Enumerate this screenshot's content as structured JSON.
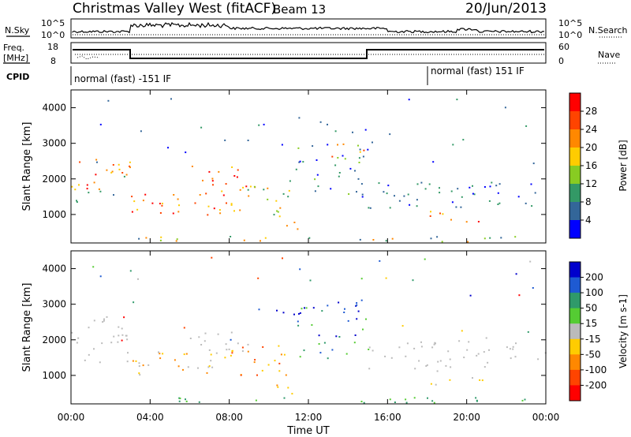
{
  "header": {
    "title": "Christmas Valley West (fitACF)",
    "beam": "Beam 13",
    "date": "20/Jun/2013"
  },
  "strips": {
    "nsky_label": "N.Sky",
    "nsky_ticks": [
      "10^5",
      "10^0"
    ],
    "nsearch_label": "N.Search",
    "freq_label_line1": "Freq.",
    "freq_label_line2": "[MHz]",
    "freq_ticks": [
      "18",
      "8"
    ],
    "nave_label": "Nave",
    "nave_ticks": [
      "60",
      "0"
    ],
    "cpid_label": "CPID",
    "cpid_segments": [
      {
        "start_hour": 0,
        "end_hour": 18,
        "label": "normal (fast) -151 IF"
      },
      {
        "start_hour": 18,
        "end_hour": 24,
        "label": "normal (fast) 151 IF"
      }
    ]
  },
  "chart_data": [
    {
      "type": "heatmap",
      "panel": "power",
      "ylabel": "Slant Range [km]",
      "xlabel": "",
      "ylim": [
        200,
        4500
      ],
      "xlim_hours": [
        0,
        24
      ],
      "y_ticks": [
        "1000",
        "2000",
        "3000",
        "4000"
      ],
      "colorbar_label": "Power [dB]",
      "colorbar_ticks": [
        "28",
        "24",
        "20",
        "16",
        "12",
        "8",
        "4"
      ],
      "colorbar_colors": [
        "#ff0000",
        "#ff4400",
        "#ff8800",
        "#ffcc00",
        "#88cc22",
        "#339966",
        "#336699",
        "#0000ff"
      ]
    },
    {
      "type": "heatmap",
      "panel": "velocity",
      "ylabel": "Slant Range [km]",
      "xlabel": "Time UT",
      "ylim": [
        200,
        4500
      ],
      "xlim_hours": [
        0,
        24
      ],
      "y_ticks": [
        "1000",
        "2000",
        "3000",
        "4000"
      ],
      "x_ticks": [
        "00:00",
        "04:00",
        "08:00",
        "12:00",
        "16:00",
        "20:00",
        "00:00"
      ],
      "colorbar_label": "Velocity [m s-1]",
      "colorbar_ticks": [
        "200",
        "100",
        "50",
        "15",
        "-15",
        "-50",
        "-100",
        "-200"
      ],
      "colorbar_colors": [
        "#0000cc",
        "#1e5ad2",
        "#2f9a6a",
        "#55cc33",
        "#bbbbbb",
        "#ffcc00",
        "#ff8800",
        "#ff4400",
        "#ff0000"
      ]
    }
  ]
}
